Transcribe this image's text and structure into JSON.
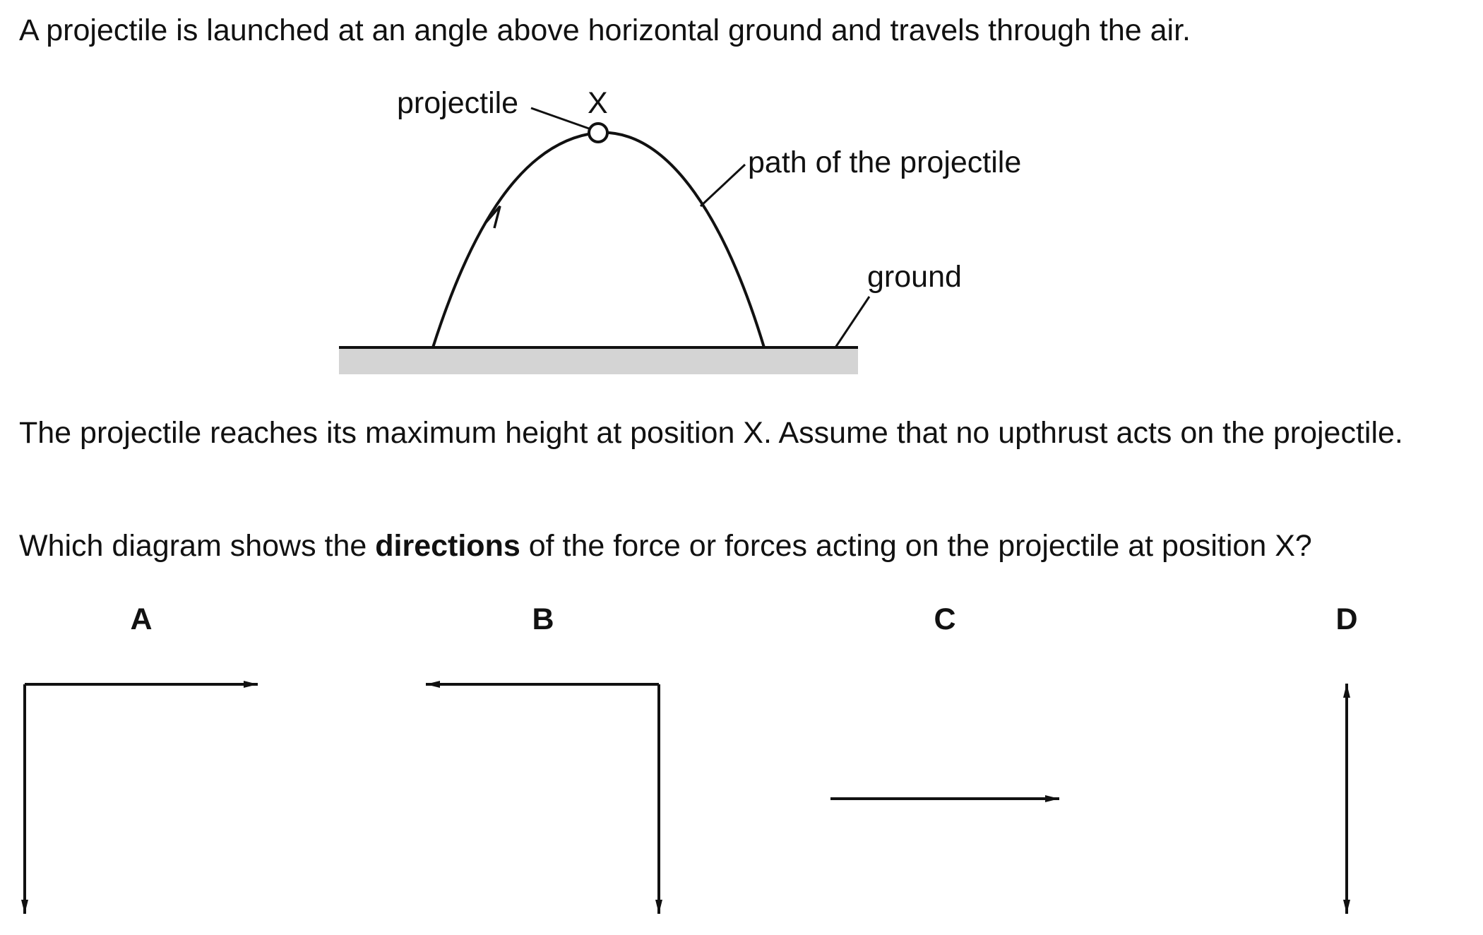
{
  "question": {
    "intro": "A projectile is launched at an angle above horizontal ground and travels through the air.",
    "paragraph_x": "The projectile reaches its maximum height at position X. Assume that no upthrust acts on the projectile.",
    "prompt_before": "Which diagram shows the ",
    "prompt_bold": "directions",
    "prompt_after": " of the force or forces acting on the projectile at position X?"
  },
  "diagram": {
    "label_projectile": "projectile",
    "label_position": "X",
    "label_path": "path of the projectile",
    "label_ground": "ground"
  },
  "options": [
    {
      "letter": "A",
      "forces": [
        "right",
        "down"
      ]
    },
    {
      "letter": "B",
      "forces": [
        "left",
        "down"
      ]
    },
    {
      "letter": "C",
      "forces": [
        "right"
      ]
    },
    {
      "letter": "D",
      "forces": [
        "up",
        "down"
      ]
    }
  ],
  "colors": {
    "ink": "#111111",
    "ground_fill": "#d4d4d4"
  }
}
